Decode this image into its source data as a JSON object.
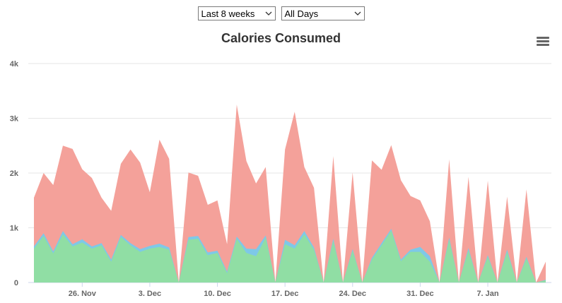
{
  "controls": {
    "range": {
      "selected": "Last 8 weeks"
    },
    "days": {
      "selected": "All Days"
    }
  },
  "colors": {
    "total_area": "#f4a19a",
    "mid_area": "#7ec8e8",
    "base_area": "#90dea4",
    "grid": "#e6e6e6",
    "text": "#666666"
  },
  "icons": {
    "menu": "hamburger-menu-icon"
  },
  "chart_data": {
    "type": "area",
    "stacked": true,
    "title": "Calories Consumed",
    "xlabel": "",
    "ylabel": "",
    "ylim": [
      0,
      4000
    ],
    "y_ticks": [
      "0",
      "1k",
      "2k",
      "3k",
      "4k"
    ],
    "y_tick_values": [
      0,
      1000,
      2000,
      3000,
      4000
    ],
    "x_tick_labels": [
      "26. Nov",
      "3. Dec",
      "10. Dec",
      "17. Dec",
      "24. Dec",
      "31. Dec",
      "7. Jan"
    ],
    "x_tick_days": [
      5,
      12,
      19,
      26,
      33,
      40,
      47
    ],
    "x_start": "21. Nov",
    "grid": true,
    "legend": "none",
    "series": [
      {
        "values": [
          620,
          850,
          530,
          880,
          660,
          730,
          620,
          680,
          380,
          830,
          680,
          560,
          620,
          650,
          600,
          0,
          780,
          800,
          500,
          540,
          170,
          800,
          540,
          480,
          820,
          0,
          700,
          620,
          880,
          600,
          0,
          760,
          0,
          580,
          0,
          420,
          680,
          950,
          390,
          560,
          560,
          380,
          0,
          780,
          0,
          590,
          0,
          470,
          0,
          560,
          0,
          440,
          0,
          40
        ]
      },
      {
        "values": [
          40,
          50,
          40,
          60,
          40,
          60,
          40,
          40,
          40,
          40,
          40,
          50,
          50,
          60,
          40,
          0,
          50,
          50,
          50,
          40,
          30,
          40,
          80,
          130,
          40,
          0,
          80,
          60,
          60,
          40,
          0,
          40,
          0,
          30,
          0,
          30,
          40,
          30,
          30,
          40,
          90,
          100,
          0,
          40,
          0,
          40,
          0,
          30,
          0,
          40,
          0,
          30,
          0,
          10
        ]
      },
      {
        "values": [
          890,
          1100,
          1210,
          1560,
          1740,
          1280,
          1250,
          830,
          890,
          1300,
          1710,
          1580,
          980,
          1900,
          1620,
          0,
          1180,
          1100,
          870,
          920,
          500,
          2410,
          1600,
          1200,
          1250,
          0,
          1650,
          2440,
          1170,
          1090,
          0,
          1510,
          0,
          1400,
          0,
          1780,
          1340,
          1530,
          1450,
          980,
          850,
          640,
          0,
          1430,
          0,
          1300,
          0,
          1360,
          0,
          970,
          0,
          1230,
          0,
          330
        ]
      }
    ]
  }
}
